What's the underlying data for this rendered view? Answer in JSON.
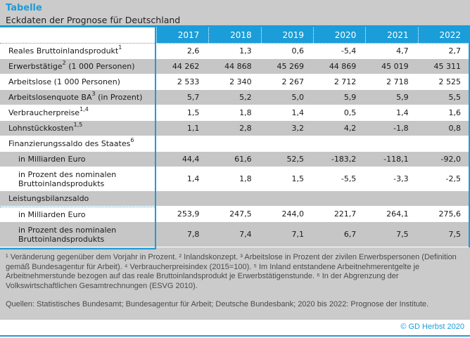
{
  "header": {
    "kicker": "Tabelle",
    "title": "Eckdaten der Prognose für Deutschland"
  },
  "table": {
    "years": [
      "2017",
      "2018",
      "2019",
      "2020",
      "2021",
      "2022"
    ],
    "rows": [
      {
        "pre": "Reales Bruttoinlandsprodukt",
        "sup": "1",
        "post": "",
        "indent": false,
        "shade": false,
        "tall": false,
        "dotted_top": false,
        "values": [
          "2,6",
          "1,3",
          "0,6",
          "-5,4",
          "4,7",
          "2,7"
        ]
      },
      {
        "pre": "Erwerbstätige",
        "sup": "2",
        "post": " (1 000 Personen)",
        "indent": false,
        "shade": true,
        "tall": false,
        "dotted_top": false,
        "values": [
          "44 262",
          "44 868",
          "45 269",
          "44 869",
          "45 019",
          "45 311"
        ]
      },
      {
        "pre": "Arbeitslose (1 000 Personen)",
        "sup": "",
        "post": "",
        "indent": false,
        "shade": false,
        "tall": false,
        "dotted_top": false,
        "values": [
          "2 533",
          "2 340",
          "2 267",
          "2 712",
          "2 718",
          "2 525"
        ]
      },
      {
        "pre": "Arbeitslosenquote BA",
        "sup": "3",
        "post": " (in Prozent)",
        "indent": false,
        "shade": true,
        "tall": false,
        "dotted_top": false,
        "values": [
          "5,7",
          "5,2",
          "5,0",
          "5,9",
          "5,9",
          "5,5"
        ]
      },
      {
        "pre": "Verbraucherpreise",
        "sup": "1,4",
        "post": "",
        "indent": false,
        "shade": false,
        "tall": false,
        "dotted_top": false,
        "values": [
          "1,5",
          "1,8",
          "1,4",
          "0,5",
          "1,4",
          "1,6"
        ]
      },
      {
        "pre": "Lohnstückkosten",
        "sup": "1,5",
        "post": "",
        "indent": false,
        "shade": true,
        "tall": false,
        "dotted_top": false,
        "values": [
          "1,1",
          "2,8",
          "3,2",
          "4,2",
          "-1,8",
          "0,8"
        ]
      },
      {
        "pre": "Finanzierungssaldo des Staates",
        "sup": "6",
        "post": "",
        "indent": false,
        "shade": false,
        "tall": false,
        "dotted_top": false,
        "values": [
          "",
          "",
          "",
          "",
          "",
          ""
        ]
      },
      {
        "pre": "in Milliarden Euro",
        "sup": "",
        "post": "",
        "indent": true,
        "shade": true,
        "tall": false,
        "dotted_top": false,
        "values": [
          "44,4",
          "61,6",
          "52,5",
          "-183,2",
          "-118,1",
          "-92,0"
        ]
      },
      {
        "pre": "in Prozent des nominalen Bruttoinlandsprodukts",
        "sup": "",
        "post": "",
        "indent": true,
        "shade": false,
        "tall": true,
        "dotted_top": false,
        "values": [
          "1,4",
          "1,8",
          "1,5",
          "-5,5",
          "-3,3",
          "-2,5"
        ]
      },
      {
        "pre": "Leistungsbilanzsaldo",
        "sup": "",
        "post": "",
        "indent": false,
        "shade": true,
        "tall": false,
        "dotted_top": false,
        "values": [
          "",
          "",
          "",
          "",
          "",
          ""
        ]
      },
      {
        "pre": "in Milliarden Euro",
        "sup": "",
        "post": "",
        "indent": true,
        "shade": false,
        "tall": false,
        "dotted_top": true,
        "values": [
          "253,9",
          "247,5",
          "244,0",
          "221,7",
          "264,1",
          "275,6"
        ]
      },
      {
        "pre": "in Prozent des nominalen Bruttoinlandsprodukts",
        "sup": "",
        "post": "",
        "indent": true,
        "shade": true,
        "tall": true,
        "dotted_top": false,
        "values": [
          "7,8",
          "7,4",
          "7,1",
          "6,7",
          "7,5",
          "7,5"
        ]
      }
    ]
  },
  "notes": {
    "footnotes": "¹ Veränderung gegenüber dem Vorjahr in Prozent. ² Inlandskonzept. ³ Arbeitslose in Prozent der zivilen Erwerbspersonen (Definition gemäß Bundesagentur für Arbeit). ⁴ Verbraucherpreisindex (2015=100). ⁵ Im Inland entstandene Arbeitnehmerentgelte je Arbeitnehmerstunde bezogen auf das reale Bruttoinlandsprodukt je Erwerbstätigenstunde. ⁶ In der Abgrenzung der Volkswirtschaftlichen Gesamtrechnungen (ESVG 2010).",
    "sources": "Quellen: Statistisches Bundesamt; Bundesagentur für Arbeit; Deutsche Bundesbank; 2020 bis 2022: Prognose der Institute."
  },
  "footer": {
    "stamp": "© GD Herbst 2020"
  },
  "colors": {
    "accent": "#1b9dd9",
    "row_shade": "#c6c6c6",
    "page_bg": "#cbcbcb"
  }
}
